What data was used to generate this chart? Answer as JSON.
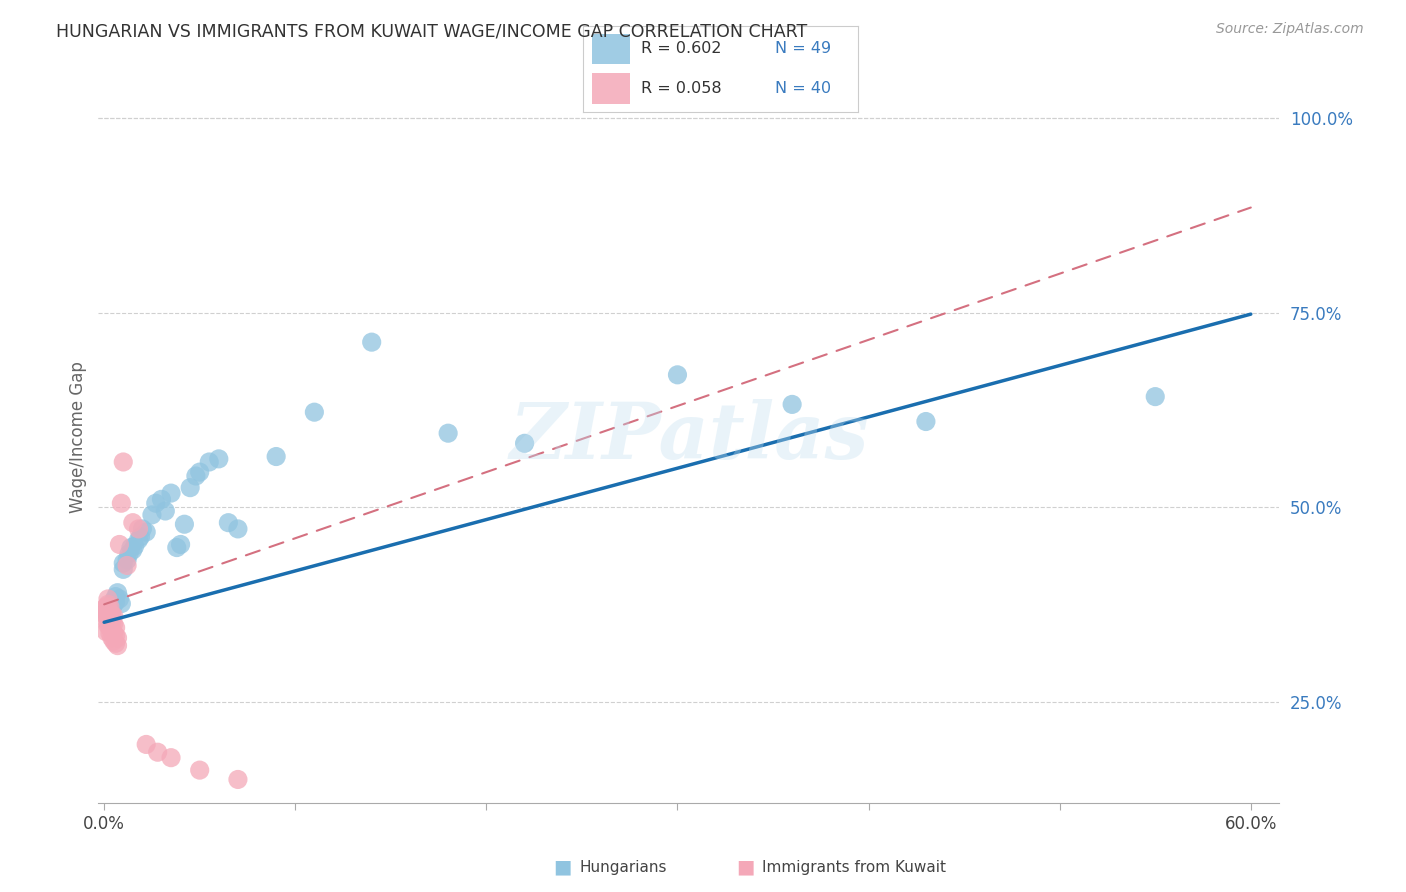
{
  "title": "HUNGARIAN VS IMMIGRANTS FROM KUWAIT WAGE/INCOME GAP CORRELATION CHART",
  "source": "Source: ZipAtlas.com",
  "ylabel": "Wage/Income Gap",
  "xlim": [
    -0.003,
    0.615
  ],
  "ylim": [
    0.12,
    1.06
  ],
  "xticks": [
    0.0,
    0.1,
    0.2,
    0.3,
    0.4,
    0.5,
    0.6
  ],
  "xticklabels": [
    "0.0%",
    "",
    "",
    "",
    "",
    "",
    "60.0%"
  ],
  "yticks_right": [
    0.25,
    0.5,
    0.75,
    1.0
  ],
  "ytick_labels_right": [
    "25.0%",
    "50.0%",
    "75.0%",
    "100.0%"
  ],
  "blue_color": "#90c4e0",
  "pink_color": "#f4a8b8",
  "blue_line_color": "#1a6eaf",
  "pink_line_color": "#d47080",
  "watermark": "ZIPatlas",
  "blue_points_x": [
    0.001,
    0.002,
    0.002,
    0.003,
    0.003,
    0.004,
    0.004,
    0.005,
    0.005,
    0.006,
    0.006,
    0.007,
    0.008,
    0.009,
    0.01,
    0.01,
    0.012,
    0.013,
    0.014,
    0.015,
    0.016,
    0.018,
    0.019,
    0.02,
    0.022,
    0.025,
    0.027,
    0.03,
    0.032,
    0.035,
    0.038,
    0.04,
    0.042,
    0.045,
    0.048,
    0.05,
    0.055,
    0.06,
    0.065,
    0.07,
    0.09,
    0.11,
    0.14,
    0.18,
    0.22,
    0.3,
    0.36,
    0.43,
    0.55
  ],
  "blue_points_y": [
    0.365,
    0.37,
    0.362,
    0.355,
    0.368,
    0.372,
    0.36,
    0.38,
    0.375,
    0.385,
    0.378,
    0.39,
    0.382,
    0.376,
    0.42,
    0.428,
    0.432,
    0.44,
    0.448,
    0.445,
    0.45,
    0.458,
    0.462,
    0.472,
    0.468,
    0.49,
    0.505,
    0.51,
    0.495,
    0.518,
    0.448,
    0.452,
    0.478,
    0.525,
    0.54,
    0.545,
    0.558,
    0.562,
    0.48,
    0.472,
    0.565,
    0.622,
    0.712,
    0.595,
    0.582,
    0.67,
    0.632,
    0.61,
    0.642
  ],
  "pink_points_x": [
    0.0003,
    0.0005,
    0.001,
    0.001,
    0.001,
    0.001,
    0.002,
    0.002,
    0.002,
    0.002,
    0.002,
    0.003,
    0.003,
    0.003,
    0.003,
    0.003,
    0.004,
    0.004,
    0.004,
    0.004,
    0.005,
    0.005,
    0.005,
    0.005,
    0.006,
    0.006,
    0.006,
    0.007,
    0.007,
    0.008,
    0.009,
    0.01,
    0.012,
    0.015,
    0.018,
    0.022,
    0.028,
    0.035,
    0.05,
    0.07
  ],
  "pink_points_y": [
    0.362,
    0.37,
    0.34,
    0.355,
    0.365,
    0.372,
    0.348,
    0.358,
    0.368,
    0.375,
    0.382,
    0.338,
    0.345,
    0.355,
    0.365,
    0.372,
    0.332,
    0.342,
    0.352,
    0.362,
    0.328,
    0.338,
    0.35,
    0.36,
    0.325,
    0.335,
    0.345,
    0.322,
    0.332,
    0.452,
    0.505,
    0.558,
    0.425,
    0.48,
    0.472,
    0.195,
    0.185,
    0.178,
    0.162,
    0.15
  ],
  "blue_line_x0": 0.0,
  "blue_line_y0": 0.352,
  "blue_line_x1": 0.6,
  "blue_line_y1": 0.748,
  "pink_line_x0": 0.0,
  "pink_line_y0": 0.375,
  "pink_line_x1": 0.6,
  "pink_line_y1": 0.885
}
